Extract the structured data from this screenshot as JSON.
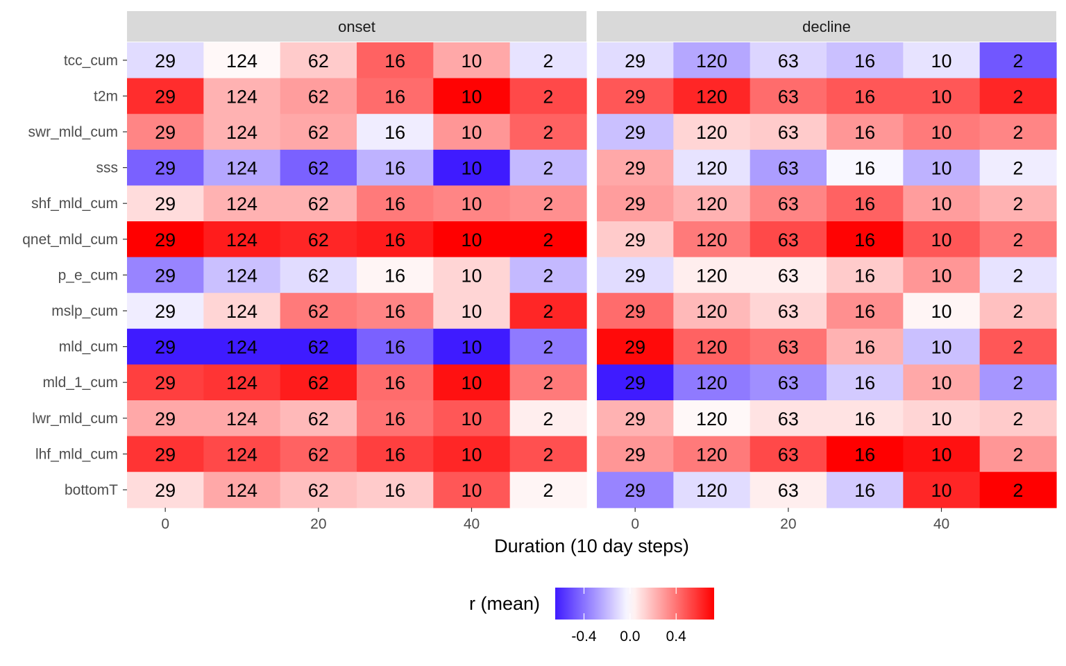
{
  "chart_data": {
    "type": "heatmap",
    "xlabel": "Duration (10 day steps)",
    "ylabel": "",
    "x": [
      0,
      10,
      20,
      30,
      40,
      50
    ],
    "x_ticks": [
      0,
      20,
      40
    ],
    "y_categories": [
      "tcc_cum",
      "t2m",
      "swr_mld_cum",
      "sss",
      "shf_mld_cum",
      "qnet_mld_cum",
      "p_e_cum",
      "mslp_cum",
      "mld_cum",
      "mld_1_cum",
      "lwr_mld_cum",
      "lhf_mld_cum",
      "bottomT"
    ],
    "facets": [
      {
        "name": "onset",
        "counts": [
          29,
          124,
          62,
          16,
          10,
          2
        ],
        "values": [
          [
            -0.1,
            0.02,
            0.15,
            0.45,
            0.25,
            -0.08
          ],
          [
            0.6,
            0.22,
            0.28,
            0.42,
            0.72,
            0.52
          ],
          [
            0.35,
            0.22,
            0.25,
            -0.05,
            0.3,
            0.45
          ],
          [
            -0.45,
            -0.25,
            -0.45,
            -0.22,
            -0.65,
            -0.2
          ],
          [
            0.1,
            0.22,
            0.22,
            0.38,
            0.35,
            0.32
          ],
          [
            0.9,
            0.65,
            0.62,
            0.65,
            0.95,
            0.85
          ],
          [
            -0.35,
            -0.18,
            -0.1,
            0.03,
            0.12,
            -0.2
          ],
          [
            -0.05,
            0.12,
            0.38,
            0.35,
            0.12,
            0.62
          ],
          [
            -0.82,
            -0.8,
            -0.78,
            -0.45,
            -0.92,
            -0.38
          ],
          [
            0.55,
            0.58,
            0.65,
            0.42,
            0.68,
            0.38
          ],
          [
            0.25,
            0.25,
            0.2,
            0.4,
            0.48,
            0.05
          ],
          [
            0.58,
            0.52,
            0.45,
            0.55,
            0.62,
            0.5
          ],
          [
            0.1,
            0.25,
            0.18,
            0.15,
            0.48,
            0.03
          ]
        ]
      },
      {
        "name": "decline",
        "counts": [
          29,
          120,
          63,
          16,
          10,
          2
        ],
        "values": [
          [
            -0.1,
            -0.25,
            -0.12,
            -0.18,
            -0.08,
            -0.48
          ],
          [
            0.48,
            0.62,
            0.42,
            0.48,
            0.48,
            0.62
          ],
          [
            -0.18,
            0.12,
            0.15,
            0.3,
            0.38,
            0.35
          ],
          [
            0.25,
            -0.08,
            -0.28,
            -0.02,
            -0.22,
            -0.05
          ],
          [
            0.28,
            0.22,
            0.35,
            0.45,
            0.28,
            0.22
          ],
          [
            0.15,
            0.38,
            0.52,
            0.72,
            0.48,
            0.38
          ],
          [
            -0.1,
            0.05,
            0.05,
            0.15,
            0.3,
            -0.08
          ],
          [
            0.42,
            0.2,
            0.12,
            0.32,
            0.03,
            0.18
          ],
          [
            0.7,
            0.45,
            0.4,
            0.22,
            -0.18,
            0.48
          ],
          [
            -0.68,
            -0.38,
            -0.32,
            -0.15,
            0.25,
            -0.3
          ],
          [
            0.22,
            0.02,
            0.08,
            0.08,
            0.12,
            0.15
          ],
          [
            0.3,
            0.38,
            0.52,
            0.78,
            0.68,
            0.3
          ],
          [
            -0.35,
            -0.1,
            0.05,
            -0.15,
            0.62,
            0.82
          ]
        ]
      }
    ],
    "legend": {
      "title": "r (mean)",
      "ticks": [
        -0.4,
        0.0,
        0.4
      ],
      "tick_labels": [
        "-0.4",
        "0.0",
        "0.4"
      ],
      "range": [
        -0.65,
        0.73
      ],
      "low_color": "#3F1BFF",
      "mid_color": "#FFFFFF",
      "high_color": "#FF0000",
      "position": "bottom"
    },
    "grid": false
  },
  "colors": {
    "strip_background": "#D9D9D9",
    "tick_color": "#333333"
  }
}
